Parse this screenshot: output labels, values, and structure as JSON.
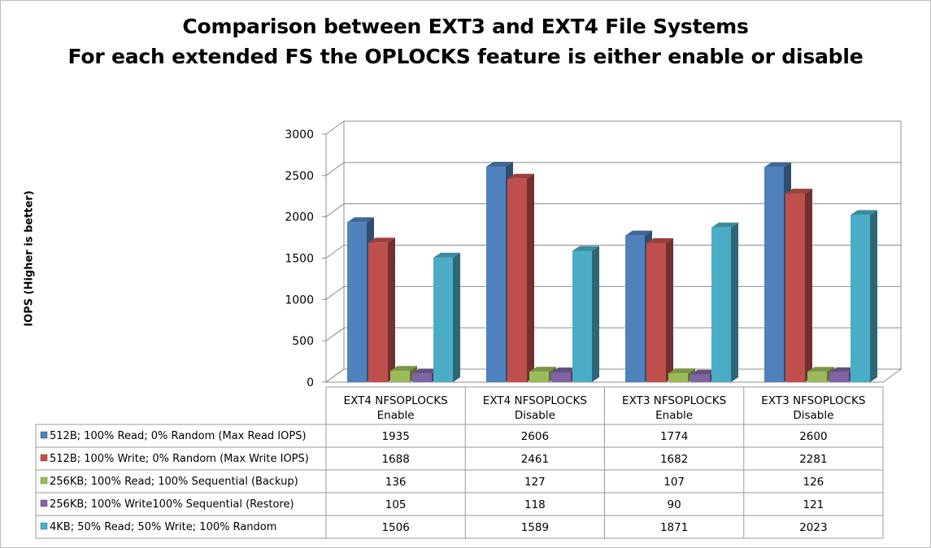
{
  "chart_data": {
    "type": "bar",
    "title": "Comparison between EXT3 and EXT4 File Systems",
    "subtitle": "For each extended FS the OPLOCKS feature is either enable or disable",
    "ylabel": "IOPS (Higher is better)",
    "xlabel": "",
    "ylim": [
      0,
      3000
    ],
    "yticks": [
      0,
      500,
      1000,
      1500,
      2000,
      2500,
      3000
    ],
    "grid": true,
    "legend_placement": "data-table-left",
    "categories": [
      [
        "EXT4 NFSOPLOCKS",
        "Enable"
      ],
      [
        "EXT4 NFSOPLOCKS",
        "Disable"
      ],
      [
        "EXT3 NFSOPLOCKS",
        "Enable"
      ],
      [
        "EXT3 NFSOPLOCKS",
        "Disable"
      ]
    ],
    "series": [
      {
        "name": "512B; 100% Read; 0% Random (Max Read IOPS)",
        "color": "#4f81bd",
        "values": [
          1935,
          2606,
          1774,
          2600
        ]
      },
      {
        "name": "512B; 100% Write; 0% Random (Max Write IOPS)",
        "color": "#c0504d",
        "values": [
          1688,
          2461,
          1682,
          2281
        ]
      },
      {
        "name": "256KB; 100% Read; 100% Sequential (Backup)",
        "color": "#9bbb59",
        "values": [
          136,
          127,
          107,
          126
        ]
      },
      {
        "name": "256KB; 100% Write100% Sequential (Restore)",
        "color": "#8064a2",
        "values": [
          105,
          118,
          90,
          121
        ]
      },
      {
        "name": "4KB; 50% Read; 50% Write; 100% Random",
        "color": "#4bacc6",
        "values": [
          1506,
          1589,
          1871,
          2023
        ]
      }
    ]
  }
}
